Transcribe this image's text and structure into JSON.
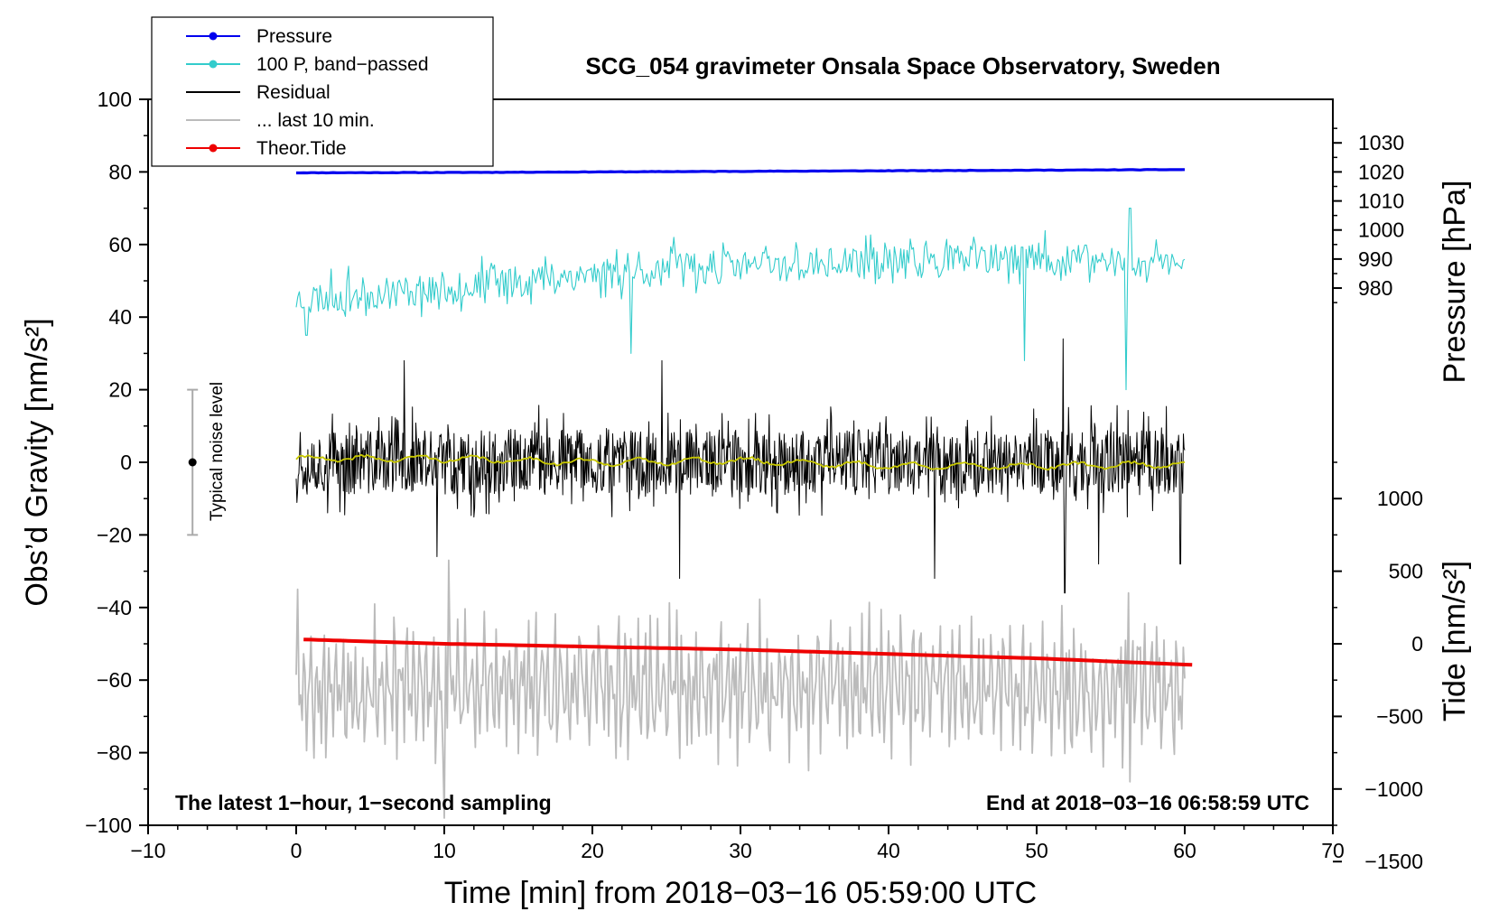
{
  "chart_data": {
    "type": "line",
    "title": "SCG_054 gravimeter Onsala Space Observatory, Sweden",
    "xlabel": "Time [min] from 2018−03−16 05:59:00 UTC",
    "ylabel_left": "Obs’d Gravity [nm/s²]",
    "ylabel_right_pressure": "Pressure [hPa]",
    "ylabel_right_tide": "Tide [nm/s²]",
    "xlim": [
      -10,
      70
    ],
    "ylim_left": [
      -100,
      100
    ],
    "x_ticks": [
      -10,
      0,
      10,
      20,
      30,
      40,
      50,
      60,
      70
    ],
    "x_tick_labels": [
      "−10",
      "0",
      "10",
      "20",
      "30",
      "40",
      "50",
      "60",
      "70"
    ],
    "y_left_ticks": [
      100,
      80,
      60,
      40,
      20,
      0,
      -20,
      -40,
      -60,
      -80,
      -100
    ],
    "y_left_tick_labels": [
      "100",
      "80",
      "60",
      "40",
      "20",
      "0",
      "−20",
      "−40",
      "−60",
      "−80",
      "−100"
    ],
    "pressure_axis": {
      "ticks": [
        1030,
        1020,
        1010,
        1000,
        990,
        980
      ],
      "tick_labels": [
        "1030",
        "1020",
        "1010",
        "1000",
        "990",
        "980"
      ],
      "left_at_value": 1020,
      "left_value": 80,
      "scale_hpa_to_left_units": 0.8
    },
    "tide_axis": {
      "ticks": [
        1000,
        500,
        0,
        -500,
        -1000,
        -1500
      ],
      "tick_labels": [
        "1000",
        "500",
        "0",
        "−500",
        "−1000",
        "−1500"
      ],
      "left_at_value": 0,
      "left_value": -50,
      "scale_nms2_to_left_units": 0.04
    },
    "legend": {
      "position": "top-left",
      "entries": [
        {
          "label": "Pressure",
          "color": "#0000ee",
          "marker": true
        },
        {
          "label": "100 P, band−passed",
          "color": "#33cccc",
          "marker": true
        },
        {
          "label": "Residual",
          "color": "#000000",
          "marker": false
        },
        {
          "label": "... last 10 min.",
          "color": "#bbbbbb",
          "marker": false
        },
        {
          "label": "Theor.Tide",
          "color": "#ee0000",
          "marker": true
        }
      ]
    },
    "annotations": {
      "bottom_left": "The latest 1−hour, 1−second sampling",
      "bottom_right": "End at 2018−03−16 06:58:59 UTC",
      "noise_label": "Typical noise level",
      "noise_bar": {
        "x": -7,
        "center": 0,
        "half_range": 20
      }
    },
    "series": [
      {
        "name": "Pressure",
        "color": "#0000ee",
        "unit": "hPa",
        "x_range": [
          0,
          60
        ],
        "x": [
          0,
          10,
          20,
          30,
          40,
          50,
          60
        ],
        "values": [
          1019.7,
          1019.8,
          1020.0,
          1020.2,
          1020.4,
          1020.6,
          1020.8
        ]
      },
      {
        "name": "100 P, band−passed",
        "color": "#33cccc",
        "unit": "left",
        "x_range": [
          0,
          60
        ],
        "x": [
          0,
          10,
          20,
          30,
          40,
          50,
          60
        ],
        "values": [
          45,
          48,
          52,
          54,
          55,
          56,
          55
        ],
        "noise_amplitude": 5,
        "spikes": [
          [
            0.7,
            35
          ],
          [
            22.6,
            30
          ],
          [
            25.5,
            62
          ],
          [
            49.2,
            28
          ],
          [
            56.0,
            20
          ],
          [
            56.3,
            70
          ]
        ]
      },
      {
        "name": "Residual",
        "color": "#000000",
        "unit": "left",
        "x_range": [
          0,
          60
        ],
        "x": [
          0,
          10,
          20,
          30,
          40,
          50,
          60
        ],
        "values": [
          0,
          0,
          0,
          0,
          0,
          0,
          0
        ],
        "noise_amplitude": 10,
        "spikes": [
          [
            7.3,
            28
          ],
          [
            9.5,
            -26
          ],
          [
            24.7,
            28
          ],
          [
            25.9,
            -32
          ],
          [
            43.1,
            -32
          ],
          [
            51.8,
            34
          ],
          [
            51.9,
            -36
          ],
          [
            54.2,
            -28
          ],
          [
            59.7,
            -28
          ]
        ]
      },
      {
        "name": "Residual (smoothed)",
        "color": "#c8c800",
        "unit": "left",
        "x_range": [
          0,
          60
        ],
        "x": [
          0,
          10,
          20,
          30,
          40,
          50,
          60
        ],
        "values": [
          1,
          1,
          0,
          0.5,
          -1,
          -1,
          -0.5
        ]
      },
      {
        "name": "... last 10 min.",
        "color": "#bbbbbb",
        "unit": "left",
        "x_range": [
          0,
          60
        ],
        "x": [
          0,
          10,
          20,
          30,
          40,
          50,
          60
        ],
        "values": [
          -62,
          -62,
          -62,
          -62,
          -62,
          -62,
          -62
        ],
        "noise_amplitude": 18,
        "spikes": [
          [
            0.1,
            -35
          ],
          [
            10.0,
            -98
          ],
          [
            10.3,
            -27
          ],
          [
            56.2,
            -36
          ],
          [
            56.3,
            -88
          ]
        ]
      },
      {
        "name": "Theor.Tide",
        "color": "#ee0000",
        "unit": "nm/s²",
        "x_range": [
          0.5,
          60.5
        ],
        "x": [
          0.5,
          10,
          20,
          30,
          40,
          50,
          60.5
        ],
        "values": [
          30,
          0,
          -20,
          -40,
          -70,
          -100,
          -145
        ]
      }
    ]
  }
}
